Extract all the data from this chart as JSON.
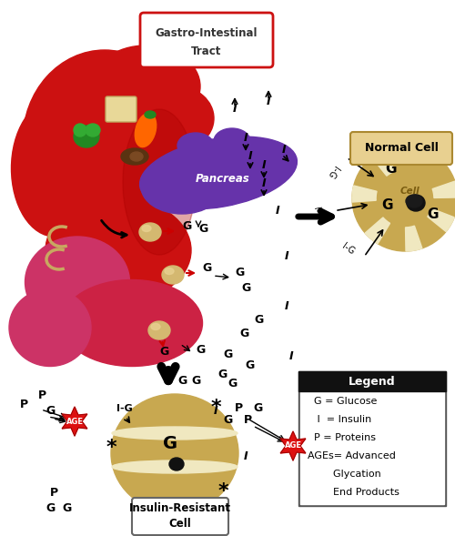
{
  "bg_color": "#ffffff",
  "gi_red1": "#cc1111",
  "gi_red2": "#bb0011",
  "gi_red3": "#cc2244",
  "gi_pink": "#cc3366",
  "pancreas_color": "#6633aa",
  "pancreas_color2": "#7744bb",
  "cell_color": "#c8a850",
  "cell_light": "#e0cc88",
  "cell_white": "#f0e8c0",
  "gi_label_text": "Gastro-Intestinal\nTract",
  "pancreas_label": "Pancreas",
  "normal_cell_label": "Normal Cell",
  "cell_label": "Cell",
  "ir_label": "Insulin-Resistant\nCell",
  "legend_title": "Legend",
  "legend_lines": [
    "  G = Glucose",
    "   I  = Insulin",
    "  P = Proteins",
    "AGEs= Advanced",
    "        Glycation",
    "        End Products"
  ]
}
